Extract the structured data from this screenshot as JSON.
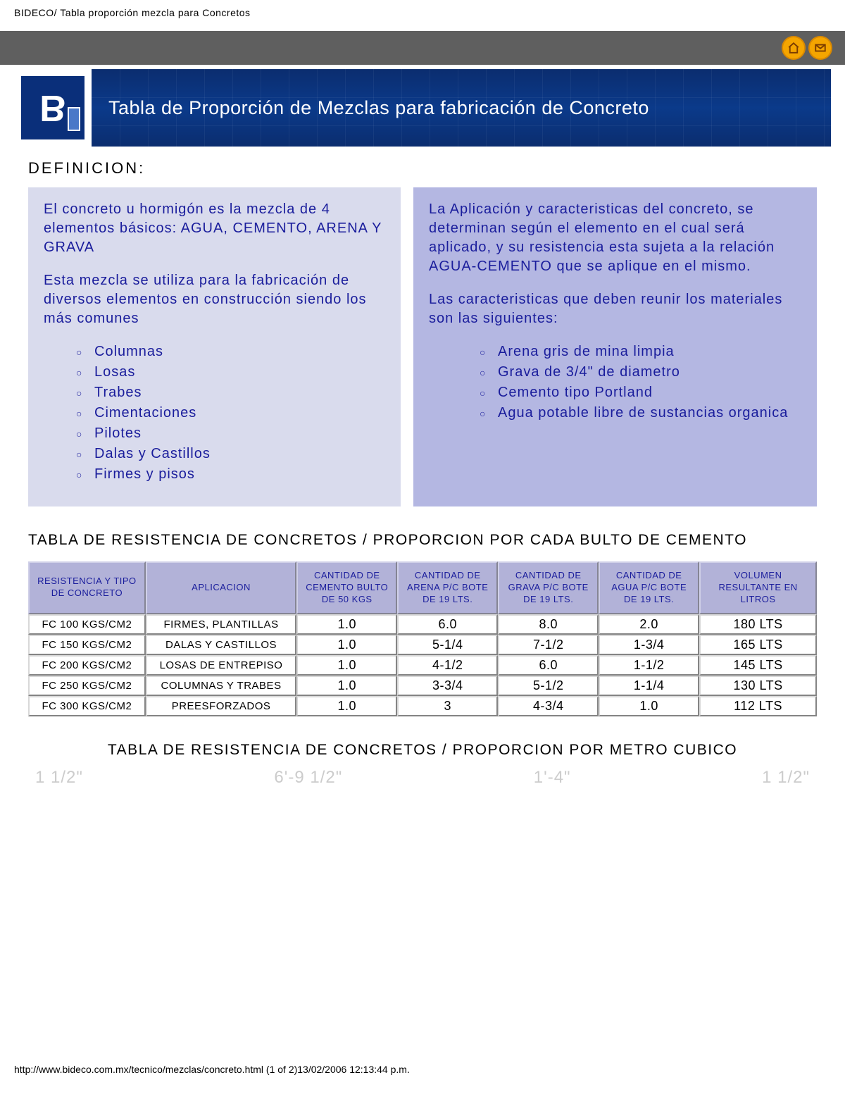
{
  "colors": {
    "gray_bar": "#5f5f5f",
    "nav_icon_bg": "#f5a500",
    "nav_icon_border": "#d98800",
    "title_blue": "#0b3282",
    "text_blue": "#1a1d9c",
    "box_left_bg": "#d9dbed",
    "box_right_bg": "#b4b7e2",
    "table_header_bg": "#b2b2d8"
  },
  "header": {
    "breadcrumb": "BIDECO/ Tabla proporción mezcla para Concretos"
  },
  "title": "Tabla de Proporción de Mezclas para fabricación de Concreto",
  "definition": {
    "heading": "DEFINICION:",
    "left": {
      "p1": "El concreto u hormigón es la mezcla de 4 elementos básicos: AGUA, CEMENTO, ARENA Y GRAVA",
      "p2": "Esta mezcla se utiliza para la fabricación de diversos elementos en construcción siendo los más comunes",
      "items": [
        "Columnas",
        "Losas",
        "Trabes",
        "Cimentaciones",
        "Pilotes",
        "Dalas y Castillos",
        "Firmes y pisos"
      ]
    },
    "right": {
      "p1": "La Aplicación y caracteristicas del concreto, se determinan según el elemento en el cual será aplicado, y su resistencia esta sujeta a la relación AGUA-CEMENTO que se aplique en el mismo.",
      "p2": "Las caracteristicas que deben reunir los materiales son las siguientes:",
      "items": [
        "Arena gris de mina limpia",
        "Grava de 3/4\" de diametro",
        "Cemento tipo Portland",
        "Agua potable libre de sustancias organica"
      ]
    }
  },
  "table1": {
    "title": "TABLA DE RESISTENCIA DE CONCRETOS /  PROPORCION POR CADA BULTO DE CEMENTO",
    "columns": [
      "RESISTENCIA Y TIPO DE CONCRETO",
      "APLICACION",
      "CANTIDAD DE CEMENTO BULTO DE 50 KGS",
      "CANTIDAD DE ARENA P/C BOTE DE 19 LTS.",
      "CANTIDAD DE GRAVA P/C BOTE DE 19 LTS.",
      "CANTIDAD DE AGUA P/C BOTE DE 19 LTS.",
      "VOLUMEN RESULTANTE EN LITROS"
    ],
    "col_widths_pct": [
      14,
      18,
      12,
      12,
      12,
      12,
      14
    ],
    "rows": [
      [
        "FC 100 KGS/CM2",
        "FIRMES, PLANTILLAS",
        "1.0",
        "6.0",
        "8.0",
        "2.0",
        "180 LTS"
      ],
      [
        "FC 150 KGS/CM2",
        "DALAS Y CASTILLOS",
        "1.0",
        "5-1/4",
        "7-1/2",
        "1-3/4",
        "165 LTS"
      ],
      [
        "FC 200 KGS/CM2",
        "LOSAS DE ENTREPISO",
        "1.0",
        "4-1/2",
        "6.0",
        "1-1/2",
        "145 LTS"
      ],
      [
        "FC 250 KGS/CM2",
        "COLUMNAS Y TRABES",
        "1.0",
        "3-3/4",
        "5-1/2",
        "1-1/4",
        "130 LTS"
      ],
      [
        "FC 300 KGS/CM2",
        "PREESFORZADOS",
        "1.0",
        "3",
        "4-3/4",
        "1.0",
        "112 LTS"
      ]
    ]
  },
  "table2": {
    "title": "TABLA DE RESISTENCIA DE CONCRETOS /  PROPORCION POR METRO CUBICO"
  },
  "blueprint_labels": [
    "1 1/2\"",
    "6'-9 1/2\"",
    "1'-4\"",
    "1 1/2\""
  ],
  "footer": {
    "url": "http://www.bideco.com.mx/tecnico/mezclas/concreto.html (1 of 2)13/02/2006 12:13:44 p.m."
  }
}
